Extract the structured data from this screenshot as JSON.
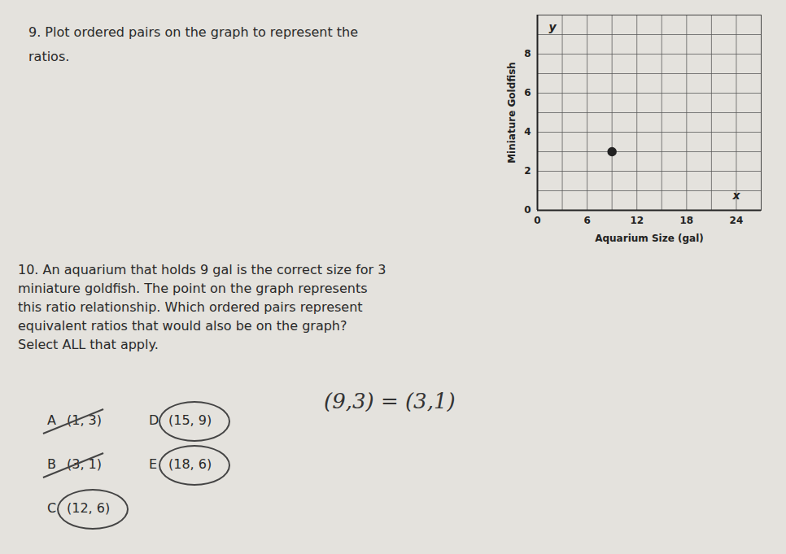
{
  "question_9": {
    "lines": [
      "9. Plot ordered pairs on the graph to represent the",
      "ratios."
    ]
  },
  "chart_data": {
    "type": "scatter",
    "x": [
      9
    ],
    "values": [
      3
    ],
    "color": "#222222",
    "marker": "circle",
    "x_label": "Aquarium Size (gal)",
    "y_label": "Miniature Goldfish",
    "x_axis_letter": "x",
    "y_axis_letter": "y",
    "xlim": [
      0,
      27
    ],
    "ylim": [
      0,
      10
    ],
    "xticks": [
      0,
      6,
      12,
      18,
      24
    ],
    "yticks": [
      0,
      2,
      4,
      6,
      8
    ],
    "grid": true
  },
  "question_10": {
    "lines": [
      "10. An aquarium that holds 9 gal is the correct size for 3",
      "miniature goldfish. The point on the graph represents",
      "this ratio relationship. Which ordered pairs represent",
      "equivalent ratios that would also be on the graph?",
      "Select ALL that apply."
    ],
    "options": [
      {
        "letter": "A",
        "text": "(1, 3)",
        "circled": false
      },
      {
        "letter": "B",
        "text": "(3, 1)",
        "circled": false
      },
      {
        "letter": "C",
        "text": "(12, 6)",
        "circled": true
      },
      {
        "letter": "D",
        "text": "(15, 9)",
        "circled": true
      },
      {
        "letter": "E",
        "text": "(18, 6)",
        "circled": true
      }
    ]
  },
  "handwriting": "(9,3) = (3,1)"
}
